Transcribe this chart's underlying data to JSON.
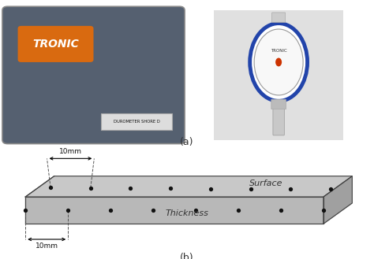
{
  "fig_width": 4.74,
  "fig_height": 3.29,
  "dpi": 100,
  "label_a": "(a)",
  "label_b": "(b)",
  "bg_color": "#ffffff",
  "dot_color": "#111111",
  "surface_label": "Surface",
  "thickness_label": "Thickness",
  "dim_label": "10mm",
  "tronic_box_color": "#556070",
  "tronic_label_bg": "#d96a10",
  "tronic_text": "TRONIC",
  "durometer_text": "DUROMETER SHORE D",
  "right_photo_bg": "#e0e0e0",
  "dial_ring_color": "#2244aa",
  "dial_face_color": "#f0f0f0",
  "dial_center_color": "#cc3300",
  "stem_color": "#c8c8c8",
  "box_top_color": "#c8c8c8",
  "box_front_color": "#b8b8b8",
  "box_right_color": "#a0a0a0",
  "box_edge_color": "#444444",
  "annotation_color": "#333333",
  "dashed_color": "#555555"
}
